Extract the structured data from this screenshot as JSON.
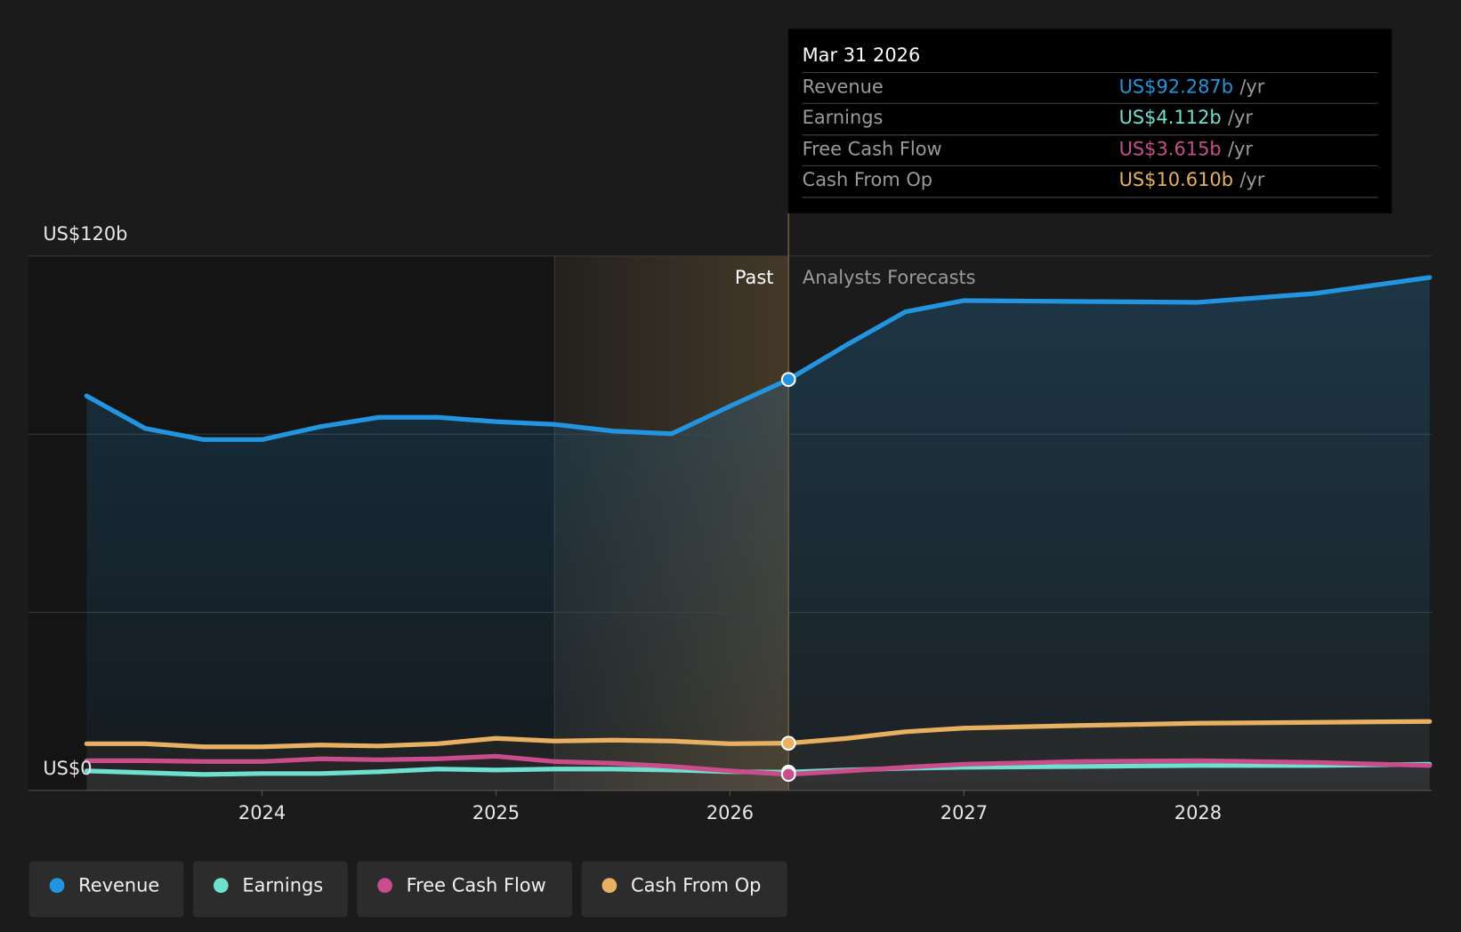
{
  "chart_data": {
    "type": "line",
    "x": [
      2023.25,
      2023.5,
      2023.75,
      2024,
      2024.25,
      2024.5,
      2024.75,
      2025,
      2025.25,
      2025.5,
      2025.75,
      2026,
      2026.25,
      2026.5,
      2026.75,
      2027,
      2027.5,
      2028,
      2028.5,
      2028.99
    ],
    "xlim": [
      2023,
      2029
    ],
    "xticks": [
      2024,
      2025,
      2026,
      2027,
      2028
    ],
    "ylim": [
      0,
      120
    ],
    "yticks": [
      {
        "value": 0,
        "label": "US$0"
      },
      {
        "value": 40,
        "label": null
      },
      {
        "value": 80,
        "label": null
      },
      {
        "value": 120,
        "label": "US$120b"
      }
    ],
    "grid": true,
    "highlight_start": 2025.25,
    "forecast_start": 2026.25,
    "annotations": {
      "past": "Past",
      "forecast": "Analysts Forecasts"
    },
    "series": [
      {
        "name": "Revenue",
        "color": "#2394df",
        "values": [
          88.6,
          81.3,
          78.8,
          78.8,
          81.7,
          83.8,
          83.8,
          82.8,
          82.2,
          80.7,
          80.1,
          86.3,
          92.287,
          100.1,
          107.5,
          110.0,
          109.8,
          109.6,
          111.6,
          115.2
        ]
      },
      {
        "name": "Earnings",
        "color": "#6ee0cf",
        "values": [
          4.4,
          4.0,
          3.6,
          3.8,
          3.8,
          4.2,
          4.8,
          4.6,
          4.8,
          4.8,
          4.6,
          4.2,
          4.112,
          4.6,
          5.0,
          5.2,
          5.4,
          5.6,
          5.6,
          5.9
        ]
      },
      {
        "name": "Free Cash Flow",
        "color": "#c94d8a",
        "values": [
          6.7,
          6.7,
          6.5,
          6.5,
          7.1,
          6.9,
          7.1,
          7.7,
          6.5,
          6.1,
          5.4,
          4.4,
          3.615,
          4.4,
          5.2,
          5.9,
          6.5,
          6.7,
          6.3,
          5.6
        ]
      },
      {
        "name": "Cash From Op",
        "color": "#e8b060",
        "values": [
          10.5,
          10.5,
          9.8,
          9.8,
          10.2,
          10.0,
          10.5,
          11.7,
          11.1,
          11.3,
          11.1,
          10.5,
          10.61,
          11.7,
          13.2,
          14.0,
          14.6,
          15.1,
          15.3,
          15.5
        ]
      }
    ],
    "tooltip": {
      "date": "Mar 31 2026",
      "index": 12,
      "per": "/yr",
      "labels": [
        "US$92.287b",
        "US$4.112b",
        "US$3.615b",
        "US$10.610b"
      ]
    }
  }
}
